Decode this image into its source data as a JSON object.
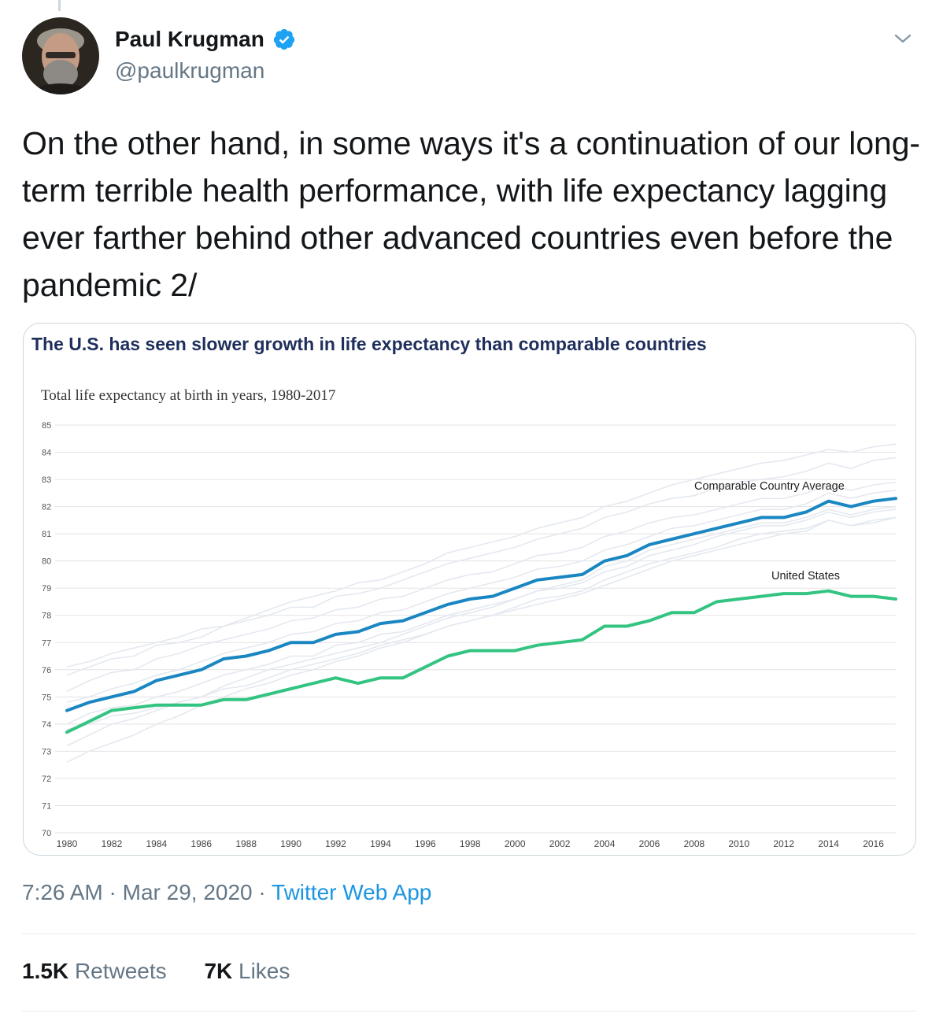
{
  "user": {
    "display_name": "Paul Krugman",
    "handle": "@paulkrugman",
    "verified": true
  },
  "tweet": {
    "text": "On the other hand, in some ways it's a continuation of our long-term terrible health performance, with life expectancy lagging ever farther behind other advanced countries even before the pandemic 2/",
    "time": "7:26 AM",
    "date": "Mar 29, 2020",
    "source": "Twitter Web App",
    "separator": "·"
  },
  "stats": {
    "retweets_count": "1.5K",
    "retweets_label": "Retweets",
    "likes_count": "7K",
    "likes_label": "Likes"
  },
  "icons": {
    "verified": "verified-badge-icon",
    "menu": "chevron-down-icon"
  },
  "colors": {
    "accent": "#1b95e0",
    "comparable_line": "#1a86c2",
    "us_line": "#33c481",
    "chart_title": "#1f2f5c"
  },
  "chart_data": {
    "type": "line",
    "title": "The U.S. has seen slower growth in life expectancy than comparable countries",
    "subtitle": "Total life expectancy at birth in years, 1980-2017",
    "xlabel": "",
    "ylabel": "",
    "ylim": [
      70,
      85
    ],
    "xlim": [
      1980,
      2017
    ],
    "y_ticks": [
      "70",
      "71",
      "72",
      "73",
      "74",
      "75",
      "76",
      "77",
      "78",
      "79",
      "80",
      "81",
      "82",
      "83",
      "84",
      "85"
    ],
    "x_ticks": [
      "1980",
      "1982",
      "1984",
      "1986",
      "1988",
      "1990",
      "1992",
      "1994",
      "1996",
      "1998",
      "2000",
      "2002",
      "2004",
      "2006",
      "2008",
      "2010",
      "2012",
      "2014",
      "2016"
    ],
    "grid": true,
    "x": [
      1980,
      1981,
      1982,
      1983,
      1984,
      1985,
      1986,
      1987,
      1988,
      1989,
      1990,
      1991,
      1992,
      1993,
      1994,
      1995,
      1996,
      1997,
      1998,
      1999,
      2000,
      2001,
      2002,
      2003,
      2004,
      2005,
      2006,
      2007,
      2008,
      2009,
      2010,
      2011,
      2012,
      2013,
      2014,
      2015,
      2016,
      2017
    ],
    "series": [
      {
        "name": "Comparable Country Average",
        "values": [
          74.5,
          74.8,
          75.0,
          75.2,
          75.6,
          75.8,
          76.0,
          76.4,
          76.5,
          76.7,
          77.0,
          77.0,
          77.3,
          77.4,
          77.7,
          77.8,
          78.1,
          78.4,
          78.6,
          78.7,
          79.0,
          79.3,
          79.4,
          79.5,
          80.0,
          80.2,
          80.6,
          80.8,
          81.0,
          81.2,
          81.4,
          81.6,
          81.6,
          81.8,
          82.2,
          82.0,
          82.2,
          82.3
        ]
      },
      {
        "name": "United States",
        "values": [
          73.7,
          74.1,
          74.5,
          74.6,
          74.7,
          74.7,
          74.7,
          74.9,
          74.9,
          75.1,
          75.3,
          75.5,
          75.7,
          75.5,
          75.7,
          75.7,
          76.1,
          76.5,
          76.7,
          76.7,
          76.7,
          76.9,
          77.0,
          77.1,
          77.6,
          77.6,
          77.8,
          78.1,
          78.1,
          78.5,
          78.6,
          78.7,
          78.8,
          78.8,
          78.9,
          78.7,
          78.7,
          78.6
        ]
      }
    ],
    "background_series": [
      [
        73.2,
        73.6,
        74.0,
        74.2,
        74.5,
        74.8,
        75.0,
        75.4,
        75.7,
        76.0,
        76.2,
        76.4,
        76.6,
        76.8,
        77.0,
        77.3,
        77.6,
        77.9,
        78.1,
        78.3,
        78.6,
        78.9,
        79.1,
        79.3,
        79.8,
        80.0,
        80.4,
        80.6,
        80.8,
        81.0,
        81.2,
        81.4,
        81.4,
        81.6,
        81.9,
        81.7,
        81.9,
        82.0
      ],
      [
        75.8,
        76.1,
        76.4,
        76.5,
        76.9,
        77.0,
        77.2,
        77.6,
        77.8,
        78.0,
        78.3,
        78.3,
        78.7,
        78.8,
        79.0,
        79.3,
        79.6,
        79.9,
        80.1,
        80.3,
        80.5,
        80.8,
        81.0,
        81.2,
        81.6,
        81.8,
        82.1,
        82.3,
        82.4,
        82.7,
        82.9,
        83.0,
        83.1,
        83.3,
        83.6,
        83.4,
        83.7,
        83.8
      ],
      [
        74.0,
        74.4,
        74.6,
        74.7,
        75.0,
        75.2,
        75.5,
        75.8,
        76.0,
        76.2,
        76.5,
        76.5,
        76.9,
        77.0,
        77.3,
        77.4,
        77.7,
        78.0,
        78.2,
        78.4,
        78.6,
        78.9,
        79.0,
        79.2,
        79.6,
        79.8,
        80.2,
        80.4,
        80.6,
        80.9,
        81.1,
        81.3,
        81.3,
        81.5,
        81.8,
        81.6,
        81.8,
        81.9
      ],
      [
        76.1,
        76.3,
        76.6,
        76.8,
        77.0,
        77.2,
        77.5,
        77.6,
        77.9,
        78.2,
        78.5,
        78.7,
        78.9,
        79.2,
        79.3,
        79.6,
        79.9,
        80.3,
        80.5,
        80.7,
        80.9,
        81.2,
        81.4,
        81.6,
        82.0,
        82.2,
        82.5,
        82.8,
        83.0,
        83.2,
        83.4,
        83.6,
        83.7,
        83.9,
        84.1,
        84.0,
        84.2,
        84.3
      ],
      [
        72.6,
        73.0,
        73.3,
        73.6,
        74.0,
        74.3,
        74.7,
        75.0,
        75.3,
        75.5,
        75.8,
        76.0,
        76.3,
        76.5,
        76.8,
        77.0,
        77.3,
        77.6,
        77.8,
        78.0,
        78.3,
        78.6,
        78.7,
        78.9,
        79.3,
        79.6,
        79.9,
        80.1,
        80.3,
        80.5,
        80.8,
        81.0,
        81.1,
        81.2,
        81.5,
        81.3,
        81.5,
        81.6
      ],
      [
        74.8,
        75.0,
        75.3,
        75.5,
        75.8,
        76.0,
        76.3,
        76.6,
        76.8,
        77.0,
        77.3,
        77.4,
        77.7,
        77.8,
        78.1,
        78.2,
        78.5,
        78.8,
        79.0,
        79.2,
        79.4,
        79.7,
        79.8,
        80.0,
        80.4,
        80.6,
        80.9,
        81.2,
        81.3,
        81.5,
        81.7,
        81.9,
        81.9,
        82.1,
        82.5,
        82.3,
        82.5,
        82.6
      ],
      [
        73.8,
        74.0,
        74.3,
        74.4,
        74.6,
        74.8,
        75.0,
        75.3,
        75.4,
        75.7,
        76.0,
        76.2,
        76.4,
        76.6,
        76.9,
        77.1,
        77.3,
        77.6,
        77.8,
        78.0,
        78.2,
        78.4,
        78.6,
        78.8,
        79.1,
        79.4,
        79.7,
        80.0,
        80.2,
        80.4,
        80.6,
        80.8,
        81.0,
        81.1,
        81.5,
        81.3,
        81.4,
        81.6
      ],
      [
        75.2,
        75.6,
        75.9,
        76.0,
        76.4,
        76.6,
        76.9,
        77.1,
        77.3,
        77.5,
        77.8,
        77.9,
        78.2,
        78.3,
        78.6,
        78.7,
        79.0,
        79.3,
        79.5,
        79.6,
        79.9,
        80.2,
        80.3,
        80.5,
        80.9,
        81.1,
        81.4,
        81.6,
        81.7,
        81.9,
        82.1,
        82.3,
        82.3,
        82.5,
        82.8,
        82.6,
        82.8,
        82.9
      ]
    ],
    "annotations": [
      "Comparable Country Average",
      "United States"
    ]
  }
}
